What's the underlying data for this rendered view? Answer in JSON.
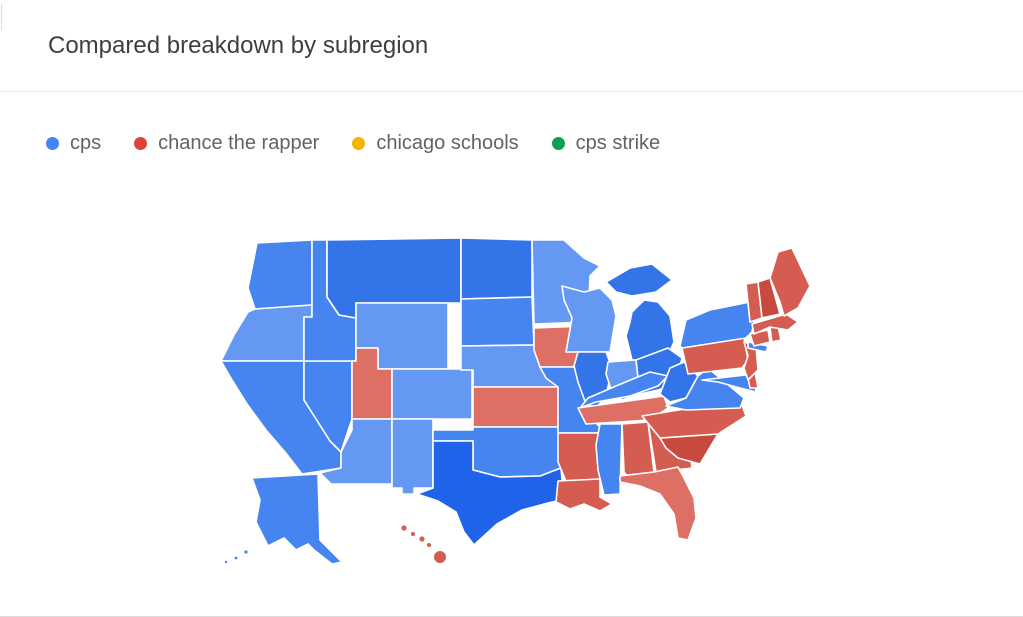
{
  "header": {
    "title": "Compared breakdown by subregion"
  },
  "legend": {
    "items": [
      {
        "label": "cps",
        "color": "#4285f4"
      },
      {
        "label": "chance the rapper",
        "color": "#db4437"
      },
      {
        "label": "chicago schools",
        "color": "#f4b400"
      },
      {
        "label": "cps strike",
        "color": "#0f9d58"
      }
    ]
  },
  "chart_data": {
    "type": "choropleth",
    "title": "Compared breakdown by subregion",
    "region": "United States, by state",
    "value_meaning": "leading search term per state; darker shade = stronger lead",
    "series": [
      "cps",
      "chance the rapper",
      "chicago schools",
      "cps strike"
    ],
    "legend_position": "top-left",
    "palette": {
      "cps": {
        "max": "#1f63e8",
        "high": "#3374e9",
        "medium": "#4684f0",
        "light": "#6598f2"
      },
      "chance the rapper": {
        "high": "#c8493d",
        "medium": "#d45c50",
        "light": "#dd6f64"
      },
      "chicago schools": {
        "base": "#f4b400"
      },
      "cps strike": {
        "base": "#0f9d58"
      }
    },
    "states": [
      {
        "code": "WA",
        "name": "Washington",
        "leading": "cps",
        "intensity": "medium"
      },
      {
        "code": "OR",
        "name": "Oregon",
        "leading": "cps",
        "intensity": "light"
      },
      {
        "code": "CA",
        "name": "California",
        "leading": "cps",
        "intensity": "medium"
      },
      {
        "code": "NV",
        "name": "Nevada",
        "leading": "cps",
        "intensity": "medium"
      },
      {
        "code": "ID",
        "name": "Idaho",
        "leading": "cps",
        "intensity": "medium"
      },
      {
        "code": "MT",
        "name": "Montana",
        "leading": "cps",
        "intensity": "high"
      },
      {
        "code": "WY",
        "name": "Wyoming",
        "leading": "cps",
        "intensity": "light"
      },
      {
        "code": "UT",
        "name": "Utah",
        "leading": "chance the rapper",
        "intensity": "light"
      },
      {
        "code": "CO",
        "name": "Colorado",
        "leading": "cps",
        "intensity": "light"
      },
      {
        "code": "AZ",
        "name": "Arizona",
        "leading": "cps",
        "intensity": "light"
      },
      {
        "code": "NM",
        "name": "New Mexico",
        "leading": "cps",
        "intensity": "light"
      },
      {
        "code": "ND",
        "name": "North Dakota",
        "leading": "cps",
        "intensity": "high"
      },
      {
        "code": "SD",
        "name": "South Dakota",
        "leading": "cps",
        "intensity": "medium"
      },
      {
        "code": "NE",
        "name": "Nebraska",
        "leading": "cps",
        "intensity": "light"
      },
      {
        "code": "KS",
        "name": "Kansas",
        "leading": "chance the rapper",
        "intensity": "light"
      },
      {
        "code": "OK",
        "name": "Oklahoma",
        "leading": "cps",
        "intensity": "medium"
      },
      {
        "code": "TX",
        "name": "Texas",
        "leading": "cps",
        "intensity": "max"
      },
      {
        "code": "MN",
        "name": "Minnesota",
        "leading": "cps",
        "intensity": "light"
      },
      {
        "code": "IA",
        "name": "Iowa",
        "leading": "chance the rapper",
        "intensity": "light"
      },
      {
        "code": "MO",
        "name": "Missouri",
        "leading": "cps",
        "intensity": "medium"
      },
      {
        "code": "AR",
        "name": "Arkansas",
        "leading": "chance the rapper",
        "intensity": "medium"
      },
      {
        "code": "LA",
        "name": "Louisiana",
        "leading": "chance the rapper",
        "intensity": "medium"
      },
      {
        "code": "WI",
        "name": "Wisconsin",
        "leading": "cps",
        "intensity": "light"
      },
      {
        "code": "IL",
        "name": "Illinois",
        "leading": "cps",
        "intensity": "high"
      },
      {
        "code": "MI",
        "name": "Michigan",
        "leading": "cps",
        "intensity": "high"
      },
      {
        "code": "IN",
        "name": "Indiana",
        "leading": "cps",
        "intensity": "light"
      },
      {
        "code": "OH",
        "name": "Ohio",
        "leading": "cps",
        "intensity": "high"
      },
      {
        "code": "KY",
        "name": "Kentucky",
        "leading": "cps",
        "intensity": "medium"
      },
      {
        "code": "TN",
        "name": "Tennessee",
        "leading": "chance the rapper",
        "intensity": "light"
      },
      {
        "code": "MS",
        "name": "Mississippi",
        "leading": "cps",
        "intensity": "medium"
      },
      {
        "code": "AL",
        "name": "Alabama",
        "leading": "chance the rapper",
        "intensity": "medium"
      },
      {
        "code": "GA",
        "name": "Georgia",
        "leading": "chance the rapper",
        "intensity": "medium"
      },
      {
        "code": "SC",
        "name": "South Carolina",
        "leading": "chance the rapper",
        "intensity": "high"
      },
      {
        "code": "NC",
        "name": "North Carolina",
        "leading": "chance the rapper",
        "intensity": "medium"
      },
      {
        "code": "FL",
        "name": "Florida",
        "leading": "chance the rapper",
        "intensity": "light"
      },
      {
        "code": "WV",
        "name": "West Virginia",
        "leading": "cps",
        "intensity": "high"
      },
      {
        "code": "VA",
        "name": "Virginia",
        "leading": "cps",
        "intensity": "medium"
      },
      {
        "code": "MD",
        "name": "Maryland",
        "leading": "cps",
        "intensity": "medium"
      },
      {
        "code": "DE",
        "name": "Delaware",
        "leading": "chance the rapper",
        "intensity": "medium"
      },
      {
        "code": "PA",
        "name": "Pennsylvania",
        "leading": "chance the rapper",
        "intensity": "medium"
      },
      {
        "code": "NJ",
        "name": "New Jersey",
        "leading": "chance the rapper",
        "intensity": "medium"
      },
      {
        "code": "NY",
        "name": "New York",
        "leading": "cps",
        "intensity": "medium"
      },
      {
        "code": "CT",
        "name": "Connecticut",
        "leading": "chance the rapper",
        "intensity": "medium"
      },
      {
        "code": "RI",
        "name": "Rhode Island",
        "leading": "chance the rapper",
        "intensity": "medium"
      },
      {
        "code": "MA",
        "name": "Massachusetts",
        "leading": "chance the rapper",
        "intensity": "medium"
      },
      {
        "code": "VT",
        "name": "Vermont",
        "leading": "chance the rapper",
        "intensity": "medium"
      },
      {
        "code": "NH",
        "name": "New Hampshire",
        "leading": "chance the rapper",
        "intensity": "high"
      },
      {
        "code": "ME",
        "name": "Maine",
        "leading": "chance the rapper",
        "intensity": "medium"
      },
      {
        "code": "AK",
        "name": "Alaska",
        "leading": "cps",
        "intensity": "medium"
      },
      {
        "code": "HI",
        "name": "Hawaii",
        "leading": "chance the rapper",
        "intensity": "medium"
      }
    ]
  }
}
